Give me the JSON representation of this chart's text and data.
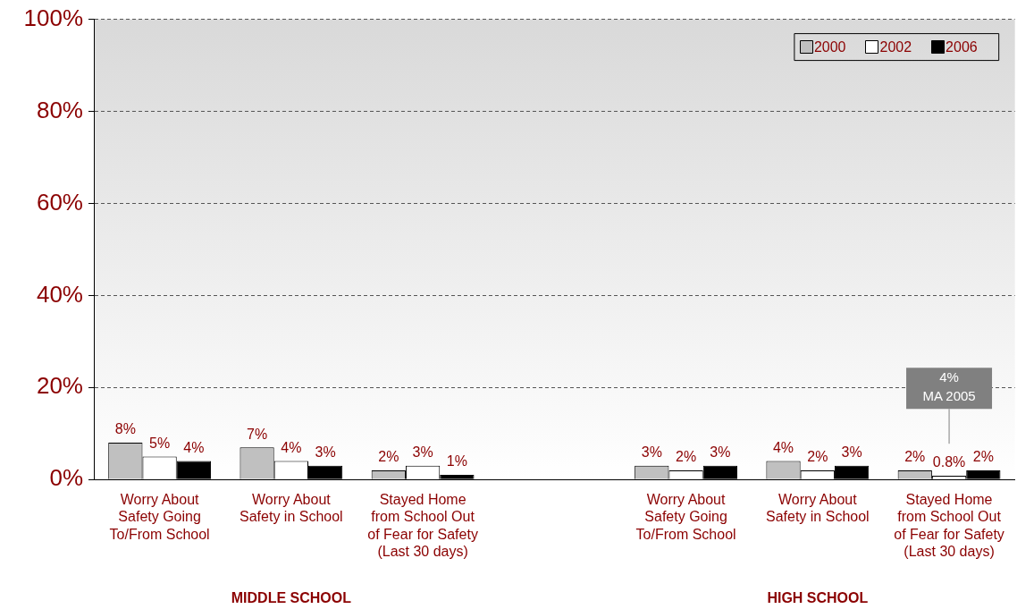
{
  "chart_data": {
    "type": "bar",
    "categories": [
      "Worry About Safety Going To/From School",
      "Worry About Safety in School",
      "Stayed Home from School Out of Fear for Safety (Last 30 days)",
      null,
      "Worry About Safety Going To/From School",
      "Worry About Safety in School",
      "Stayed Home from School Out of Fear for Safety (Last 30 days)"
    ],
    "series": [
      {
        "name": "2000",
        "color": "#c0c0c0",
        "values": [
          8,
          7,
          2,
          null,
          3,
          4,
          2
        ],
        "value_labels": [
          "8%",
          "7%",
          "2%",
          null,
          "3%",
          "4%",
          "2%"
        ]
      },
      {
        "name": "2002",
        "color": "#ffffff",
        "values": [
          5,
          4,
          3,
          null,
          2,
          2,
          0.8
        ],
        "value_labels": [
          "5%",
          "4%",
          "3%",
          null,
          "2%",
          "2%",
          "0.8%"
        ]
      },
      {
        "name": "2006",
        "color": "#000000",
        "values": [
          4,
          3,
          1,
          null,
          3,
          3,
          2
        ],
        "value_labels": [
          "4%",
          "3%",
          "1%",
          null,
          "3%",
          "3%",
          "2%"
        ]
      }
    ],
    "ylim": [
      0,
      100
    ],
    "yticks": [
      {
        "value": 0,
        "label": "0%"
      },
      {
        "value": 20,
        "label": "20%"
      },
      {
        "value": 40,
        "label": "40%"
      },
      {
        "value": 60,
        "label": "60%"
      },
      {
        "value": 80,
        "label": "80%"
      },
      {
        "value": 100,
        "label": "100%"
      }
    ],
    "grid": "y",
    "legend": "top right",
    "annotations": [
      "MIDDLE SCHOOL",
      "HIGH SCHOOL",
      "4%\nMA 2005"
    ]
  }
}
